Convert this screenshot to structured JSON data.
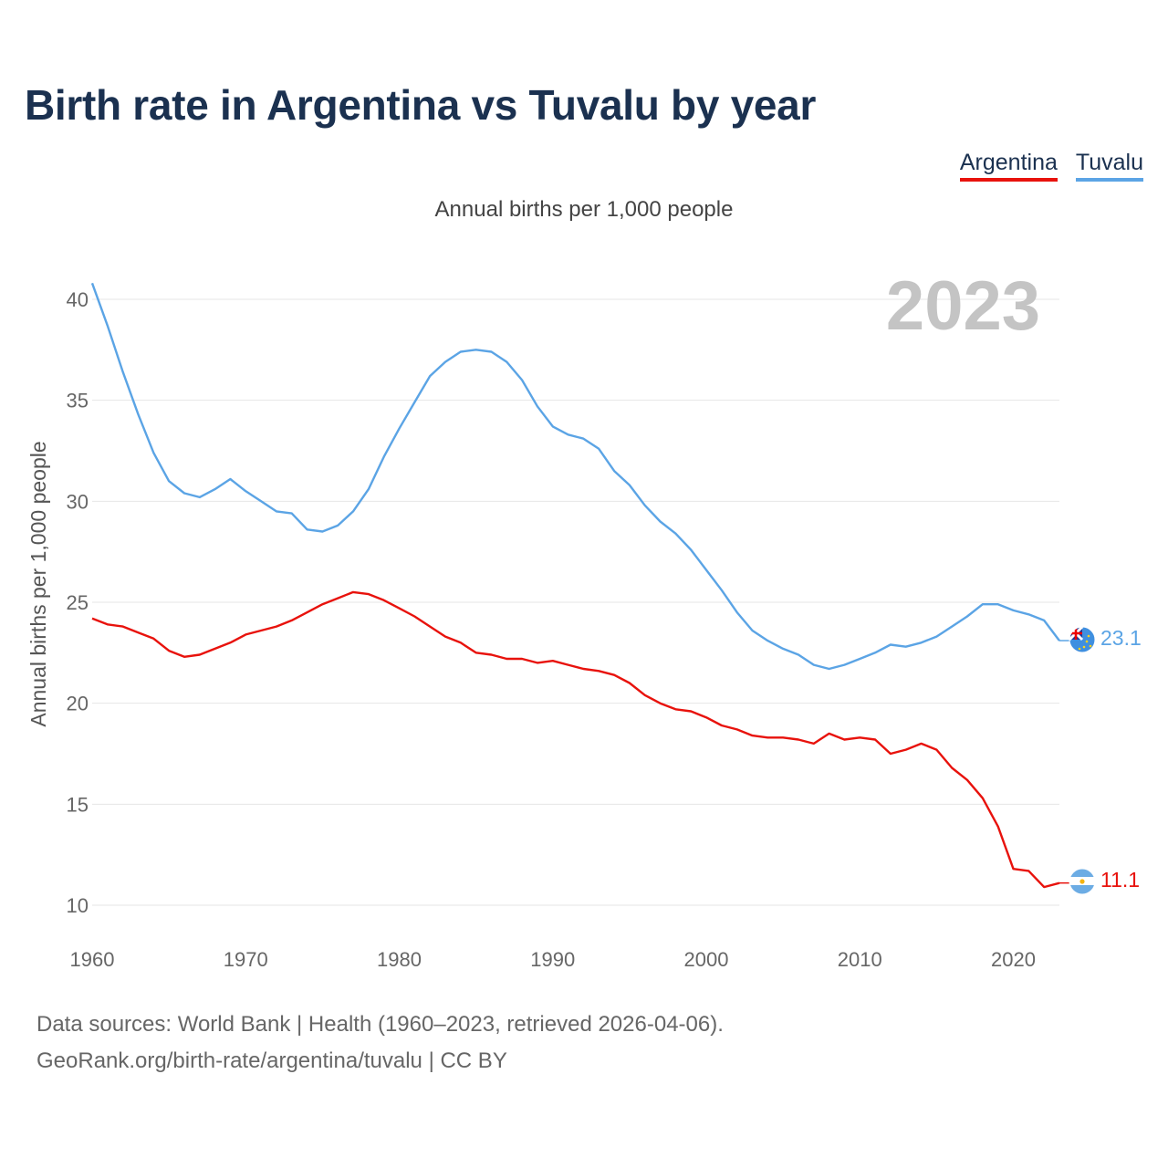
{
  "title": "Birth rate in Argentina vs Tuvalu by year",
  "subtitle": "Annual births per 1,000 people",
  "legend": [
    {
      "label": "Argentina",
      "color": "#e8120c"
    },
    {
      "label": "Tuvalu",
      "color": "#5ba4e5"
    }
  ],
  "footer": {
    "line1": "Data sources: World Bank | Health (1960–2023, retrieved 2026-04-06).",
    "line2": "GeoRank.org/birth-rate/argentina/tuvalu | CC BY"
  },
  "chart_data": {
    "type": "line",
    "title": "Birth rate in Argentina vs Tuvalu by year",
    "ylabel": "Annual births per 1,000 people",
    "xlabel": "",
    "year_label": "2023",
    "xlim": [
      1960,
      2023
    ],
    "ylim": [
      10,
      41
    ],
    "x_ticks": [
      1960,
      1970,
      1980,
      1990,
      2000,
      2010,
      2020
    ],
    "y_ticks": [
      10,
      15,
      20,
      25,
      30,
      35,
      40
    ],
    "grid": true,
    "x": [
      1960,
      1961,
      1962,
      1963,
      1964,
      1965,
      1966,
      1967,
      1968,
      1969,
      1970,
      1971,
      1972,
      1973,
      1974,
      1975,
      1976,
      1977,
      1978,
      1979,
      1980,
      1981,
      1982,
      1983,
      1984,
      1985,
      1986,
      1987,
      1988,
      1989,
      1990,
      1991,
      1992,
      1993,
      1994,
      1995,
      1996,
      1997,
      1998,
      1999,
      2000,
      2001,
      2002,
      2003,
      2004,
      2005,
      2006,
      2007,
      2008,
      2009,
      2010,
      2011,
      2012,
      2013,
      2014,
      2015,
      2016,
      2017,
      2018,
      2019,
      2020,
      2021,
      2022,
      2023
    ],
    "series": [
      {
        "name": "Tuvalu",
        "color": "#5ba4e5",
        "end_label": "23.1",
        "values": [
          40.8,
          38.7,
          36.4,
          34.3,
          32.4,
          31.0,
          30.4,
          30.2,
          30.6,
          31.1,
          30.5,
          30.0,
          29.5,
          29.4,
          28.6,
          28.5,
          28.8,
          29.5,
          30.6,
          32.2,
          33.6,
          34.9,
          36.2,
          36.9,
          37.4,
          37.5,
          37.4,
          36.9,
          36.0,
          34.7,
          33.7,
          33.3,
          33.1,
          32.6,
          31.5,
          30.8,
          29.8,
          29.0,
          28.4,
          27.6,
          26.6,
          25.6,
          24.5,
          23.6,
          23.1,
          22.7,
          22.4,
          21.9,
          21.7,
          21.9,
          22.2,
          22.5,
          22.9,
          22.8,
          23.0,
          23.3,
          23.8,
          24.3,
          24.9,
          24.9,
          24.6,
          24.4,
          24.1,
          23.1
        ]
      },
      {
        "name": "Argentina",
        "color": "#e8120c",
        "end_label": "11.1",
        "values": [
          24.2,
          23.9,
          23.8,
          23.5,
          23.2,
          22.6,
          22.3,
          22.4,
          22.7,
          23.0,
          23.4,
          23.6,
          23.8,
          24.1,
          24.5,
          24.9,
          25.2,
          25.5,
          25.4,
          25.1,
          24.7,
          24.3,
          23.8,
          23.3,
          23.0,
          22.5,
          22.4,
          22.2,
          22.2,
          22.0,
          22.1,
          21.9,
          21.7,
          21.6,
          21.4,
          21.0,
          20.4,
          20.0,
          19.7,
          19.6,
          19.3,
          18.9,
          18.7,
          18.4,
          18.3,
          18.3,
          18.2,
          18.0,
          18.5,
          18.2,
          18.3,
          18.2,
          17.5,
          17.7,
          18.0,
          17.7,
          16.8,
          16.2,
          15.3,
          13.9,
          11.8,
          11.7,
          10.9,
          11.1
        ]
      }
    ]
  }
}
